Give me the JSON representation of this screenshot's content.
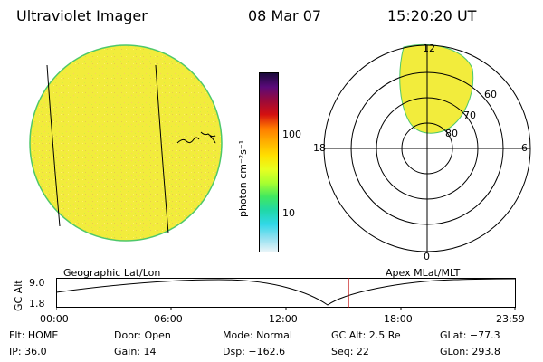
{
  "header": {
    "title": "Ultraviolet Imager",
    "date": "08 Mar 07",
    "time": "15:20:20 UT"
  },
  "colorbar": {
    "unit_label": "photon cm⁻²s⁻¹",
    "tick_labels": [
      "100",
      "10"
    ],
    "colors": [
      "#1a0a3a",
      "#5a0a7a",
      "#9a0a3a",
      "#d41010",
      "#ff7a00",
      "#ffb000",
      "#ffe000",
      "#e8ff20",
      "#a8ff30",
      "#40e860",
      "#20d8a8",
      "#30d8e8",
      "#90e0f0",
      "#e8f4f8"
    ]
  },
  "polar_plot": {
    "mlt_labels": {
      "top": "12",
      "bottom": "0",
      "left": "18",
      "right": "6"
    },
    "lat_labels": [
      "60",
      "70",
      "80"
    ]
  },
  "timeline": {
    "left_title": "Geographic Lat/Lon",
    "right_title": "Apex MLat/MLT",
    "y_label": "GC Alt",
    "y_ticks": [
      "9.0",
      "1.8"
    ],
    "x_ticks": [
      "00:00",
      "06:00",
      "12:00",
      "18:00",
      "23:59"
    ]
  },
  "status": {
    "flt": "Flt: HOME",
    "ip": "IP: 36.0",
    "door": "Door: Open",
    "gain": "Gain: 14",
    "mode": "Mode: Normal",
    "dsp": "Dsp: −162.6",
    "gc_alt": "GC Alt: 2.5 Re",
    "seq": "Seq: 22",
    "glat": "GLat: −77.3",
    "glon": "GLon: 293.8"
  },
  "colors": {
    "disk_fill": "#f2ec3c",
    "disk_edge": "#4ec86a",
    "marker": "#c00000"
  }
}
